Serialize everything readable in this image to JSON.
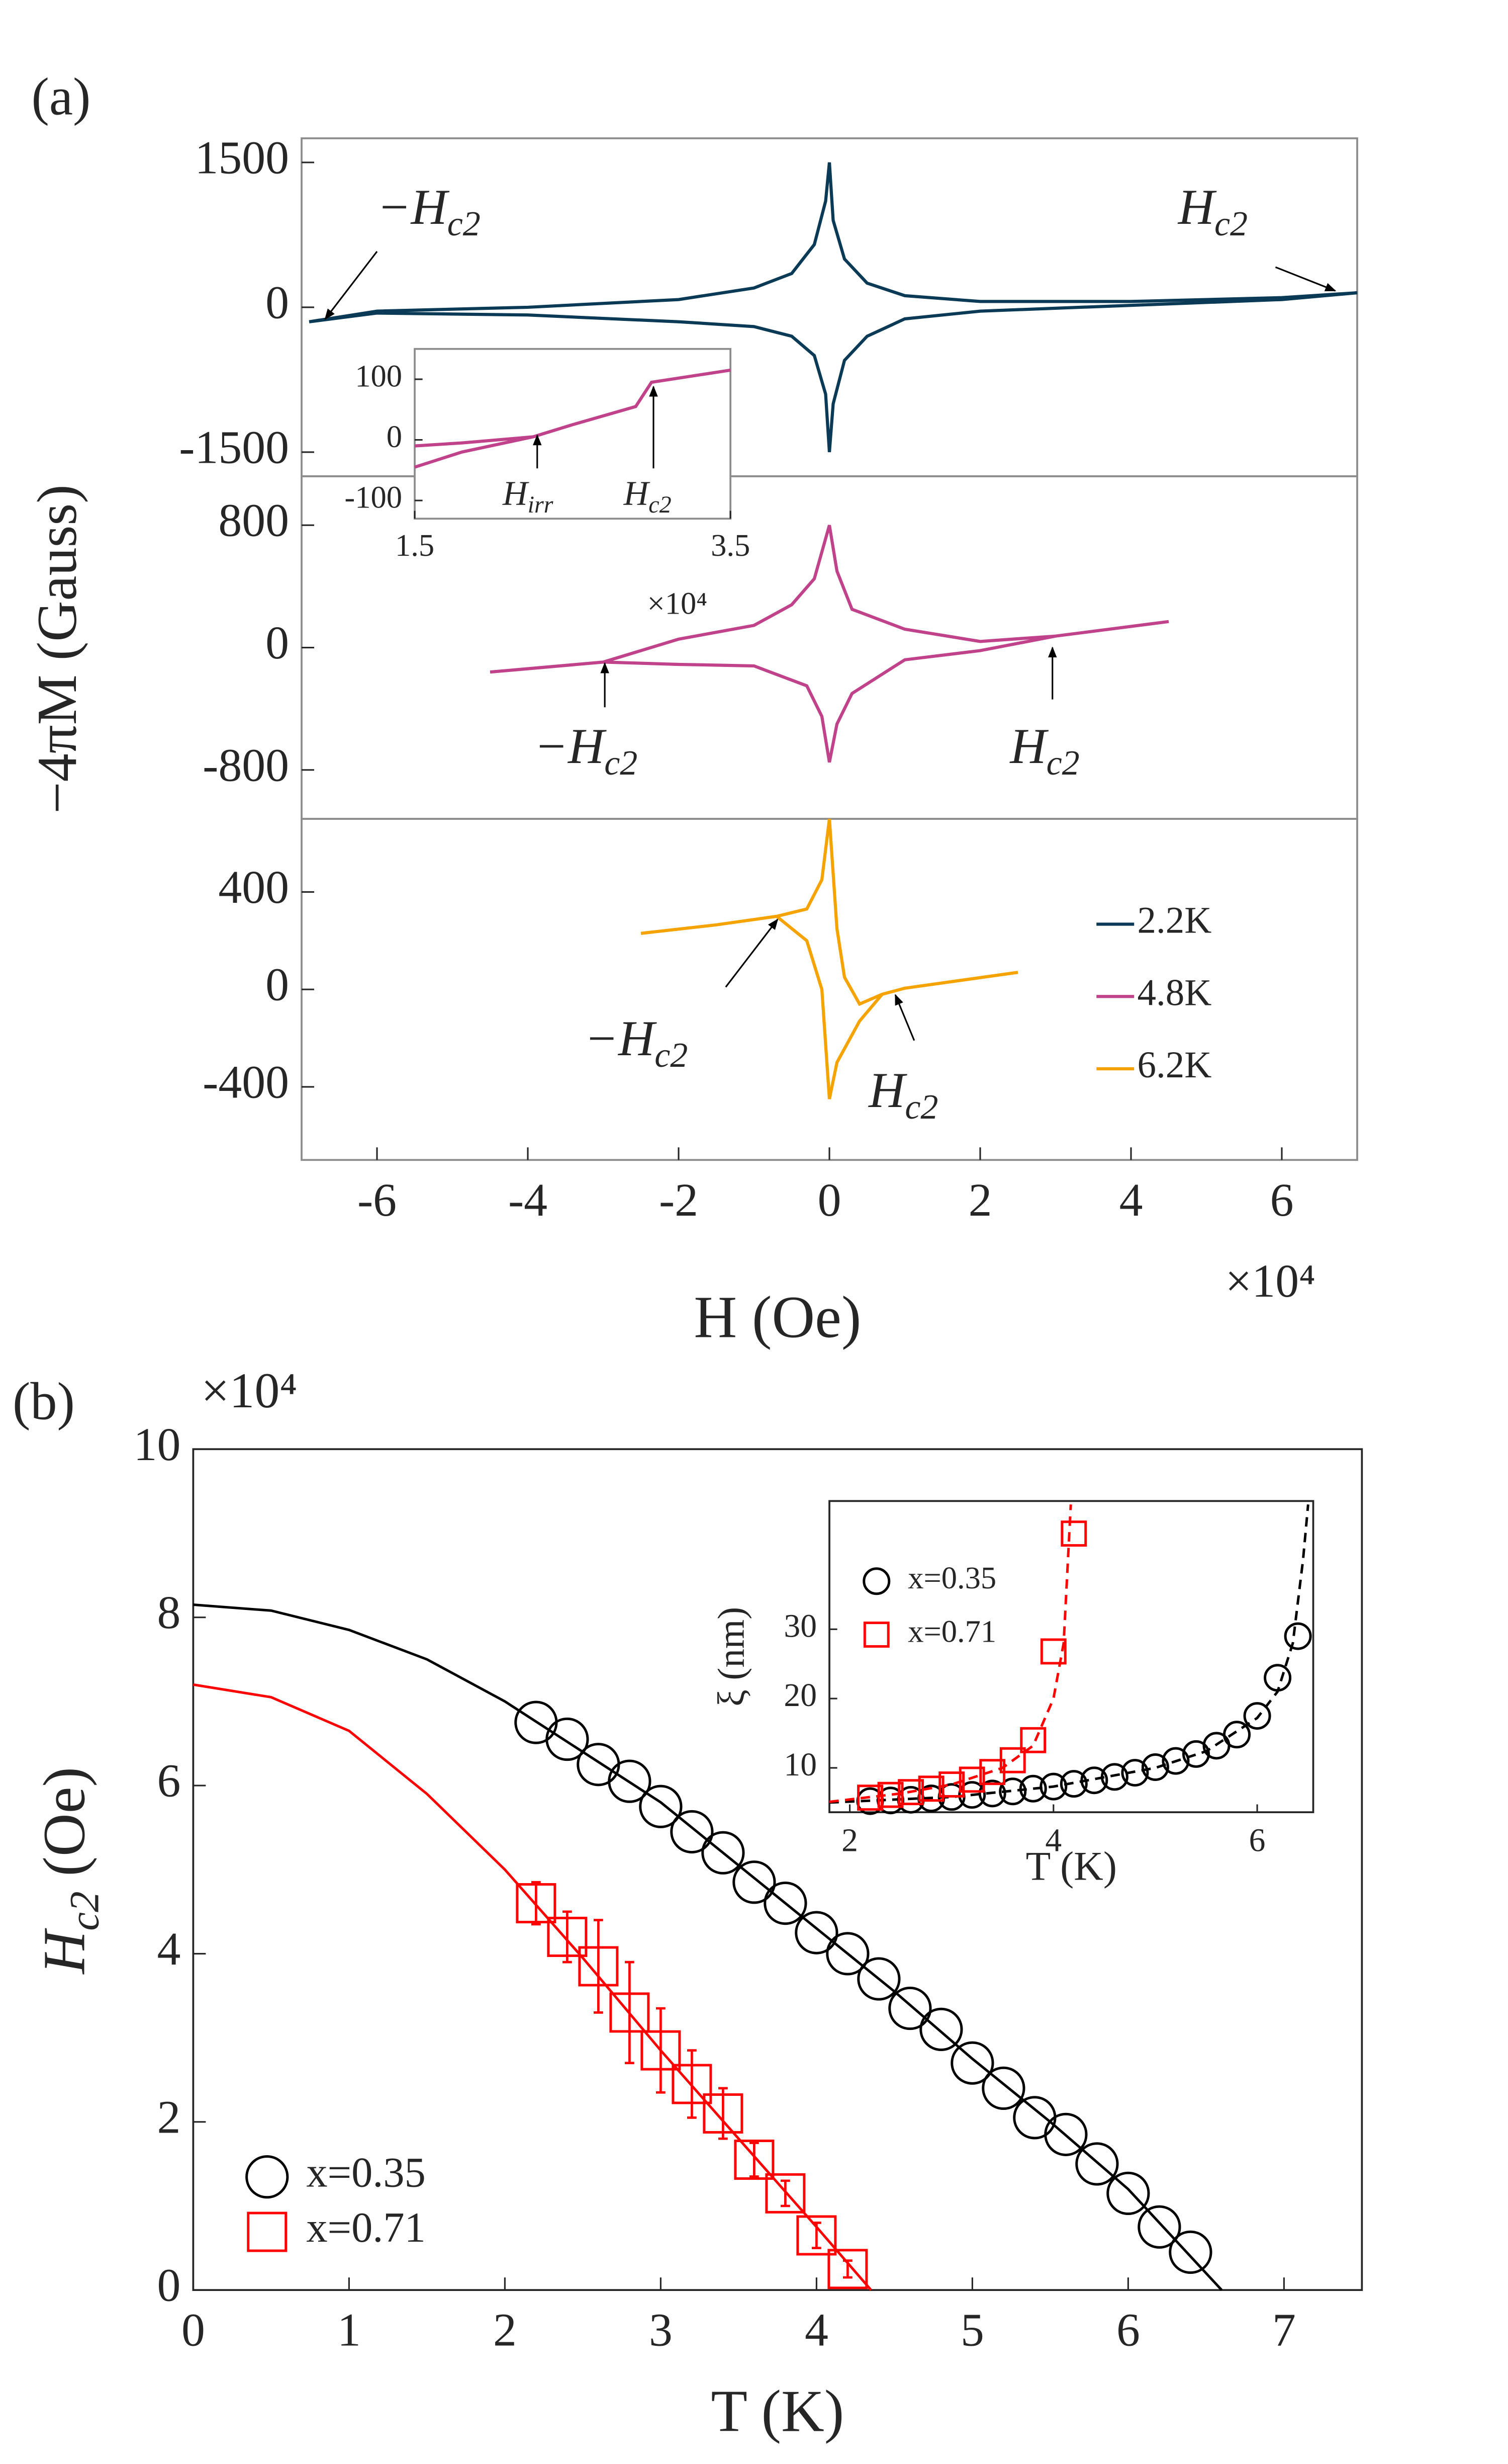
{
  "chart_data": [
    {
      "type": "line",
      "panel_label": "(a)",
      "xlim": [
        -7,
        7
      ],
      "ylim": [
        -1750,
        1750
      ],
      "yticks": [
        -1500,
        0,
        1500
      ],
      "series": [
        {
          "name": "2.2K",
          "color": "#0a3a55",
          "x": [
            -6.9,
            -6,
            -4,
            -2,
            -1,
            -0.5,
            -0.2,
            -0.05,
            0,
            0.05,
            0.2,
            0.5,
            1,
            2,
            4,
            6,
            7,
            6,
            4,
            2,
            1,
            0.5,
            0.2,
            0.05,
            0,
            -0.05,
            -0.2,
            -0.5,
            -1,
            -2,
            -4,
            -6,
            -6.9
          ],
          "values": [
            -150,
            -40,
            0,
            80,
            200,
            350,
            650,
            1100,
            1500,
            900,
            500,
            250,
            120,
            60,
            60,
            100,
            150,
            80,
            20,
            -40,
            -120,
            -300,
            -550,
            -1000,
            -1500,
            -900,
            -500,
            -300,
            -200,
            -150,
            -80,
            -60,
            -150
          ]
        }
      ],
      "annotations": [
        {
          "text": "−H",
          "sub": "c2"
        },
        {
          "text": "H",
          "sub": "c2"
        }
      ]
    },
    {
      "type": "line",
      "ylabel": "−4πM (Gauss)",
      "xlim": [
        -7,
        7
      ],
      "ylim": [
        -1120,
        1120
      ],
      "yticks": [
        -800,
        0,
        800
      ],
      "series": [
        {
          "name": "4.8K",
          "color": "#c0428a",
          "x": [
            -4.5,
            -3,
            -2,
            -1,
            -0.5,
            -0.2,
            0,
            0.1,
            0.3,
            1,
            2,
            3,
            4.5,
            3,
            2,
            1,
            0.3,
            0.1,
            0,
            -0.1,
            -0.3,
            -1,
            -2,
            -3,
            -4.5
          ],
          "values": [
            -160,
            -95,
            55,
            145,
            280,
            450,
            800,
            500,
            250,
            120,
            40,
            75,
            170,
            75,
            -20,
            -80,
            -300,
            -500,
            -750,
            -450,
            -250,
            -120,
            -110,
            -95,
            -160
          ]
        }
      ],
      "annotations": [
        {
          "text": "−H",
          "sub": "c2"
        },
        {
          "text": "H",
          "sub": "c2"
        }
      ]
    },
    {
      "type": "line",
      "xlabel": "H (Oe)",
      "x_multiplier": "×10⁴",
      "xlim": [
        -7,
        7
      ],
      "xticks": [
        -6,
        -4,
        -2,
        0,
        2,
        4,
        6
      ],
      "ylim": [
        -700,
        700
      ],
      "yticks": [
        -400,
        0,
        400
      ],
      "series": [
        {
          "name": "6.2K",
          "color": "#f5a300",
          "x": [
            -2.5,
            -1.5,
            -0.7,
            -0.3,
            -0.1,
            0,
            0.1,
            0.2,
            0.4,
            0.7,
            1,
            2.5,
            1,
            0.7,
            0.4,
            0.1,
            0,
            -0.1,
            -0.3,
            -0.7
          ],
          "values": [
            230,
            265,
            300,
            330,
            450,
            700,
            250,
            50,
            -60,
            -20,
            5,
            70,
            5,
            -20,
            -130,
            -300,
            -450,
            0,
            200,
            300
          ]
        }
      ],
      "annotations": [
        {
          "text": "−H",
          "sub": "c2"
        },
        {
          "text": "H",
          "sub": "c2"
        }
      ]
    },
    {
      "type": "line",
      "x_multiplier": "×10⁴",
      "xlim": [
        1.5,
        3.5
      ],
      "xticks": [
        1.5,
        3.5
      ],
      "ylim": [
        -130,
        150
      ],
      "yticks": [
        -100,
        0,
        100
      ],
      "series": [
        {
          "color": "#c0428a",
          "x": [
            1.5,
            1.8,
            2.25,
            2.5,
            2.9,
            3.0,
            3.5,
            3.0,
            2.9,
            2.5,
            2.25,
            1.8,
            1.5
          ],
          "values": [
            -10,
            -5,
            5,
            25,
            55,
            95,
            115,
            95,
            55,
            25,
            5,
            -20,
            -45
          ]
        }
      ],
      "annotations": [
        {
          "text": "H",
          "sub": "irr"
        },
        {
          "text": "H",
          "sub": "c2"
        }
      ]
    },
    {
      "type": "scatter",
      "panel_label": "(b)",
      "xlabel": "T (K)",
      "ylabel": {
        "text": "H",
        "sub": "c2",
        "suffix": " (Oe)"
      },
      "y_multiplier": "×10⁴",
      "xlim": [
        0,
        7.5
      ],
      "xticks": [
        0,
        1,
        2,
        3,
        4,
        5,
        6,
        7
      ],
      "ylim": [
        0,
        10
      ],
      "yticks": [
        0,
        2,
        4,
        6,
        8,
        10
      ],
      "series": [
        {
          "name": "x=0.35",
          "marker": "circle",
          "color": "#000000",
          "x": [
            2.2,
            2.4,
            2.6,
            2.8,
            3.0,
            3.2,
            3.4,
            3.6,
            3.8,
            4.0,
            4.2,
            4.4,
            4.6,
            4.8,
            5.0,
            5.2,
            5.4,
            5.6,
            5.8,
            6.0,
            6.2,
            6.4
          ],
          "values": [
            6.75,
            6.55,
            6.25,
            6.05,
            5.75,
            5.45,
            5.2,
            4.85,
            4.6,
            4.25,
            4.0,
            3.7,
            3.35,
            3.1,
            2.7,
            2.4,
            2.05,
            1.85,
            1.5,
            1.15,
            0.75,
            0.45
          ],
          "fit": {
            "x": [
              0,
              0.5,
              1,
              1.5,
              2,
              2.5,
              3,
              3.5,
              4,
              4.5,
              5,
              5.5,
              6,
              6.6
            ],
            "values": [
              8.15,
              8.08,
              7.85,
              7.5,
              7.0,
              6.4,
              5.8,
              5.05,
              4.3,
              3.55,
              2.75,
              2.0,
              1.2,
              0
            ]
          }
        },
        {
          "name": "x=0.71",
          "marker": "square",
          "color": "#ff0000",
          "x": [
            2.2,
            2.4,
            2.6,
            2.8,
            3.0,
            3.2,
            3.4,
            3.6,
            3.8,
            4.0,
            4.2
          ],
          "values": [
            4.6,
            4.2,
            3.85,
            3.3,
            2.85,
            2.45,
            2.1,
            1.55,
            1.15,
            0.65,
            0.25
          ],
          "errors": [
            0.25,
            0.3,
            0.55,
            0.6,
            0.5,
            0.4,
            0.3,
            0.2,
            0.15,
            0.15,
            0.1
          ],
          "fit": {
            "x": [
              0,
              0.5,
              1,
              1.5,
              2,
              2.5,
              3,
              3.5,
              4,
              4.35
            ],
            "values": [
              7.2,
              7.05,
              6.65,
              5.9,
              5.0,
              3.95,
              2.85,
              1.8,
              0.75,
              0
            ]
          }
        }
      ]
    },
    {
      "type": "scatter",
      "xlabel": "T (K)",
      "ylabel": "ξ (nm)",
      "fit_linestyle": "dashed",
      "xlim": [
        1.8,
        6.55
      ],
      "xticks": [
        2,
        4,
        6
      ],
      "ylim": [
        3.6,
        48.5
      ],
      "yticks": [
        10,
        20,
        30
      ],
      "series": [
        {
          "name": "x=0.35",
          "marker": "circle",
          "color": "#000000",
          "x": [
            2.2,
            2.4,
            2.6,
            2.8,
            3.0,
            3.2,
            3.4,
            3.6,
            3.8,
            4.0,
            4.2,
            4.4,
            4.6,
            4.8,
            5.0,
            5.2,
            5.4,
            5.6,
            5.8,
            6.0,
            6.2,
            6.4
          ],
          "values": [
            5.2,
            5.3,
            5.4,
            5.6,
            5.8,
            6.1,
            6.3,
            6.6,
            7.0,
            7.3,
            7.7,
            8.2,
            8.7,
            9.3,
            10.1,
            11.0,
            12.0,
            13.2,
            14.8,
            17.5,
            23,
            29
          ],
          "fit": {
            "x": [
              1.8,
              3,
              4,
              5,
              5.5,
              6,
              6.2,
              6.35,
              6.45,
              6.5
            ],
            "values": [
              5.0,
              5.8,
              7.3,
              10.0,
              12.4,
              17.2,
              21,
              28,
              40,
              48
            ]
          }
        },
        {
          "name": "x=0.71",
          "marker": "square",
          "color": "#ff0000",
          "x": [
            2.2,
            2.4,
            2.6,
            2.8,
            3.0,
            3.2,
            3.4,
            3.6,
            3.8,
            4.0,
            4.2
          ],
          "values": [
            5.7,
            6.1,
            6.5,
            7.0,
            7.6,
            8.3,
            9.4,
            11.1,
            14.0,
            26.8,
            43.8
          ],
          "fit": {
            "x": [
              1.8,
              2.5,
              3,
              3.5,
              3.8,
              4.0,
              4.1,
              4.17
            ],
            "values": [
              5.1,
              6.3,
              7.6,
              10,
              13.2,
              20,
              28,
              48
            ]
          }
        }
      ]
    }
  ]
}
